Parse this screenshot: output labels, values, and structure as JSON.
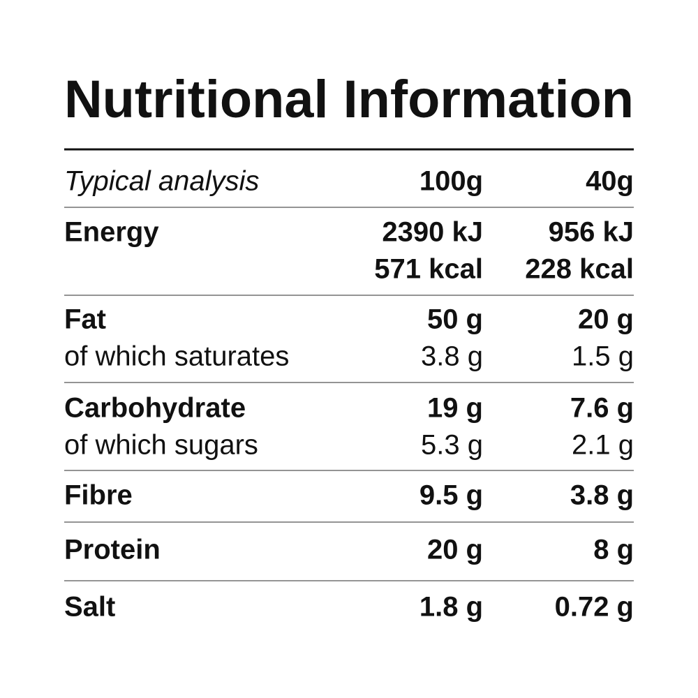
{
  "title": "Nutritional Information",
  "table": {
    "header": {
      "label": "Typical analysis",
      "col1": "100g",
      "col2": "40g"
    },
    "rows": [
      {
        "name": "Energy",
        "col1": [
          "2390 kJ",
          "571 kcal"
        ],
        "col2": [
          "956 kJ",
          "228 kcal"
        ]
      },
      {
        "name": "Fat",
        "col1": [
          "50 g"
        ],
        "col2": [
          "20 g"
        ],
        "sub": {
          "name": "of which saturates",
          "col1": "3.8 g",
          "col2": "1.5 g"
        }
      },
      {
        "name": "Carbohydrate",
        "col1": [
          "19 g"
        ],
        "col2": [
          "7.6 g"
        ],
        "sub": {
          "name": "of which sugars",
          "col1": "5.3 g",
          "col2": "2.1 g"
        }
      },
      {
        "name": "Fibre",
        "col1": [
          "9.5 g"
        ],
        "col2": [
          "3.8 g"
        ]
      },
      {
        "name": "Protein",
        "col1": [
          "20 g"
        ],
        "col2": [
          "8 g"
        ]
      },
      {
        "name": "Salt",
        "col1": [
          "1.8 g"
        ],
        "col2": [
          "0.72 g"
        ]
      }
    ]
  }
}
